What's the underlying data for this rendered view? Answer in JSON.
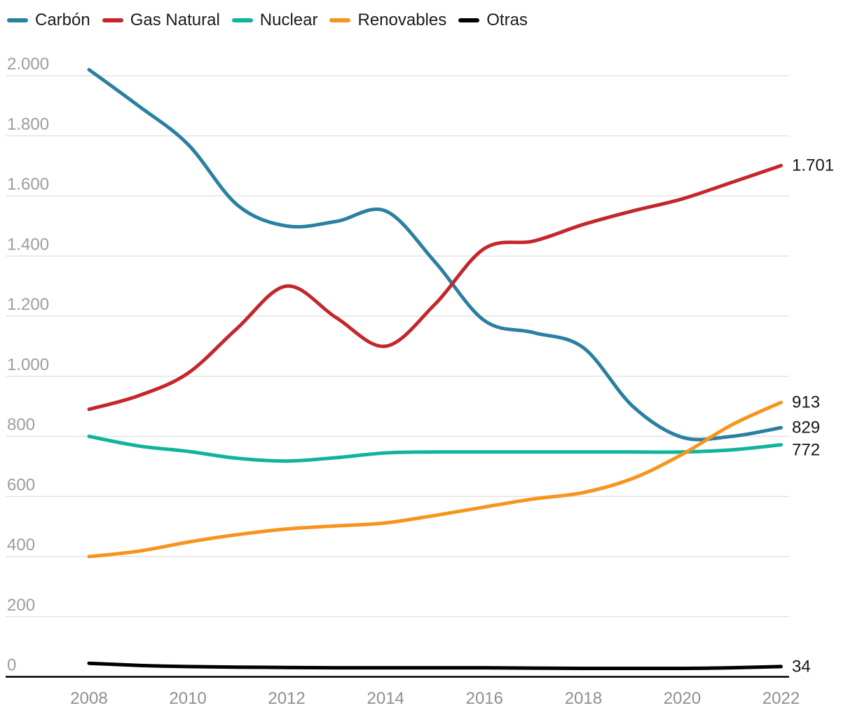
{
  "chart_data": {
    "type": "line",
    "x": [
      2008,
      2009,
      2010,
      2011,
      2012,
      2013,
      2014,
      2015,
      2016,
      2017,
      2018,
      2019,
      2020,
      2021,
      2022
    ],
    "x_ticks": [
      "2008",
      "2010",
      "2012",
      "2014",
      "2016",
      "2018",
      "2020",
      "2022"
    ],
    "y_ticks": [
      {
        "value": 0,
        "label": "0"
      },
      {
        "value": 200,
        "label": "200"
      },
      {
        "value": 400,
        "label": "400"
      },
      {
        "value": 600,
        "label": "600"
      },
      {
        "value": 800,
        "label": "800"
      },
      {
        "value": 1000,
        "label": "1.000"
      },
      {
        "value": 1200,
        "label": "1.200"
      },
      {
        "value": 1400,
        "label": "1.400"
      },
      {
        "value": 1600,
        "label": "1.600"
      },
      {
        "value": 1800,
        "label": "1.800"
      },
      {
        "value": 2000,
        "label": "2.000"
      }
    ],
    "ylim": [
      0,
      2000
    ],
    "grid": "horizontal",
    "legend_position": "top-left",
    "series": [
      {
        "key": "carbon",
        "name": "Carbón",
        "color": "#2a80a0",
        "values": [
          2020,
          1900,
          1772,
          1570,
          1500,
          1515,
          1550,
          1380,
          1185,
          1145,
          1095,
          900,
          797,
          800,
          829
        ],
        "end_label": "829"
      },
      {
        "key": "gas-natural",
        "name": "Gas Natural",
        "color": "#c3272b",
        "values": [
          890,
          935,
          1010,
          1160,
          1300,
          1195,
          1100,
          1240,
          1425,
          1450,
          1505,
          1550,
          1590,
          1645,
          1701
        ],
        "end_label": "1.701"
      },
      {
        "key": "nuclear",
        "name": "Nuclear",
        "color": "#10b49b",
        "values": [
          800,
          768,
          750,
          727,
          718,
          729,
          745,
          748,
          748,
          748,
          748,
          748,
          748,
          755,
          772
        ],
        "end_label": "772"
      },
      {
        "key": "renovables",
        "name": "Renovables",
        "color": "#f6941e",
        "values": [
          400,
          418,
          448,
          473,
          492,
          502,
          512,
          537,
          565,
          592,
          613,
          660,
          740,
          838,
          913
        ],
        "end_label": "913"
      },
      {
        "key": "otras",
        "name": "Otras",
        "color": "#000000",
        "values": [
          45,
          38,
          34,
          32,
          31,
          30,
          30,
          30,
          30,
          29,
          28,
          28,
          28,
          30,
          34
        ],
        "end_label": "34"
      }
    ]
  }
}
